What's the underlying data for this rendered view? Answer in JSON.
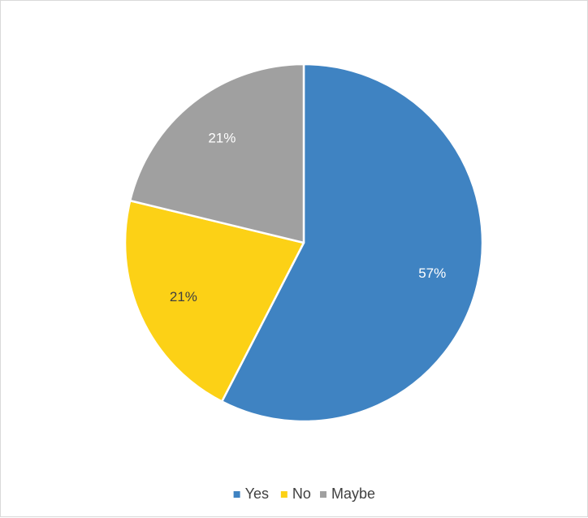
{
  "chart_data": {
    "type": "pie",
    "title": "",
    "categories": [
      "Yes",
      "No",
      "Maybe"
    ],
    "values": [
      57,
      21,
      21
    ],
    "data_labels": [
      "57%",
      "21%",
      "21%"
    ],
    "colors": [
      "#3f83c2",
      "#fcd116",
      "#a0a0a0"
    ],
    "label_colors": [
      "#ffffff",
      "#404040",
      "#ffffff"
    ],
    "legend": {
      "position": "bottom",
      "entries": [
        "Yes",
        "No",
        "Maybe"
      ]
    }
  }
}
